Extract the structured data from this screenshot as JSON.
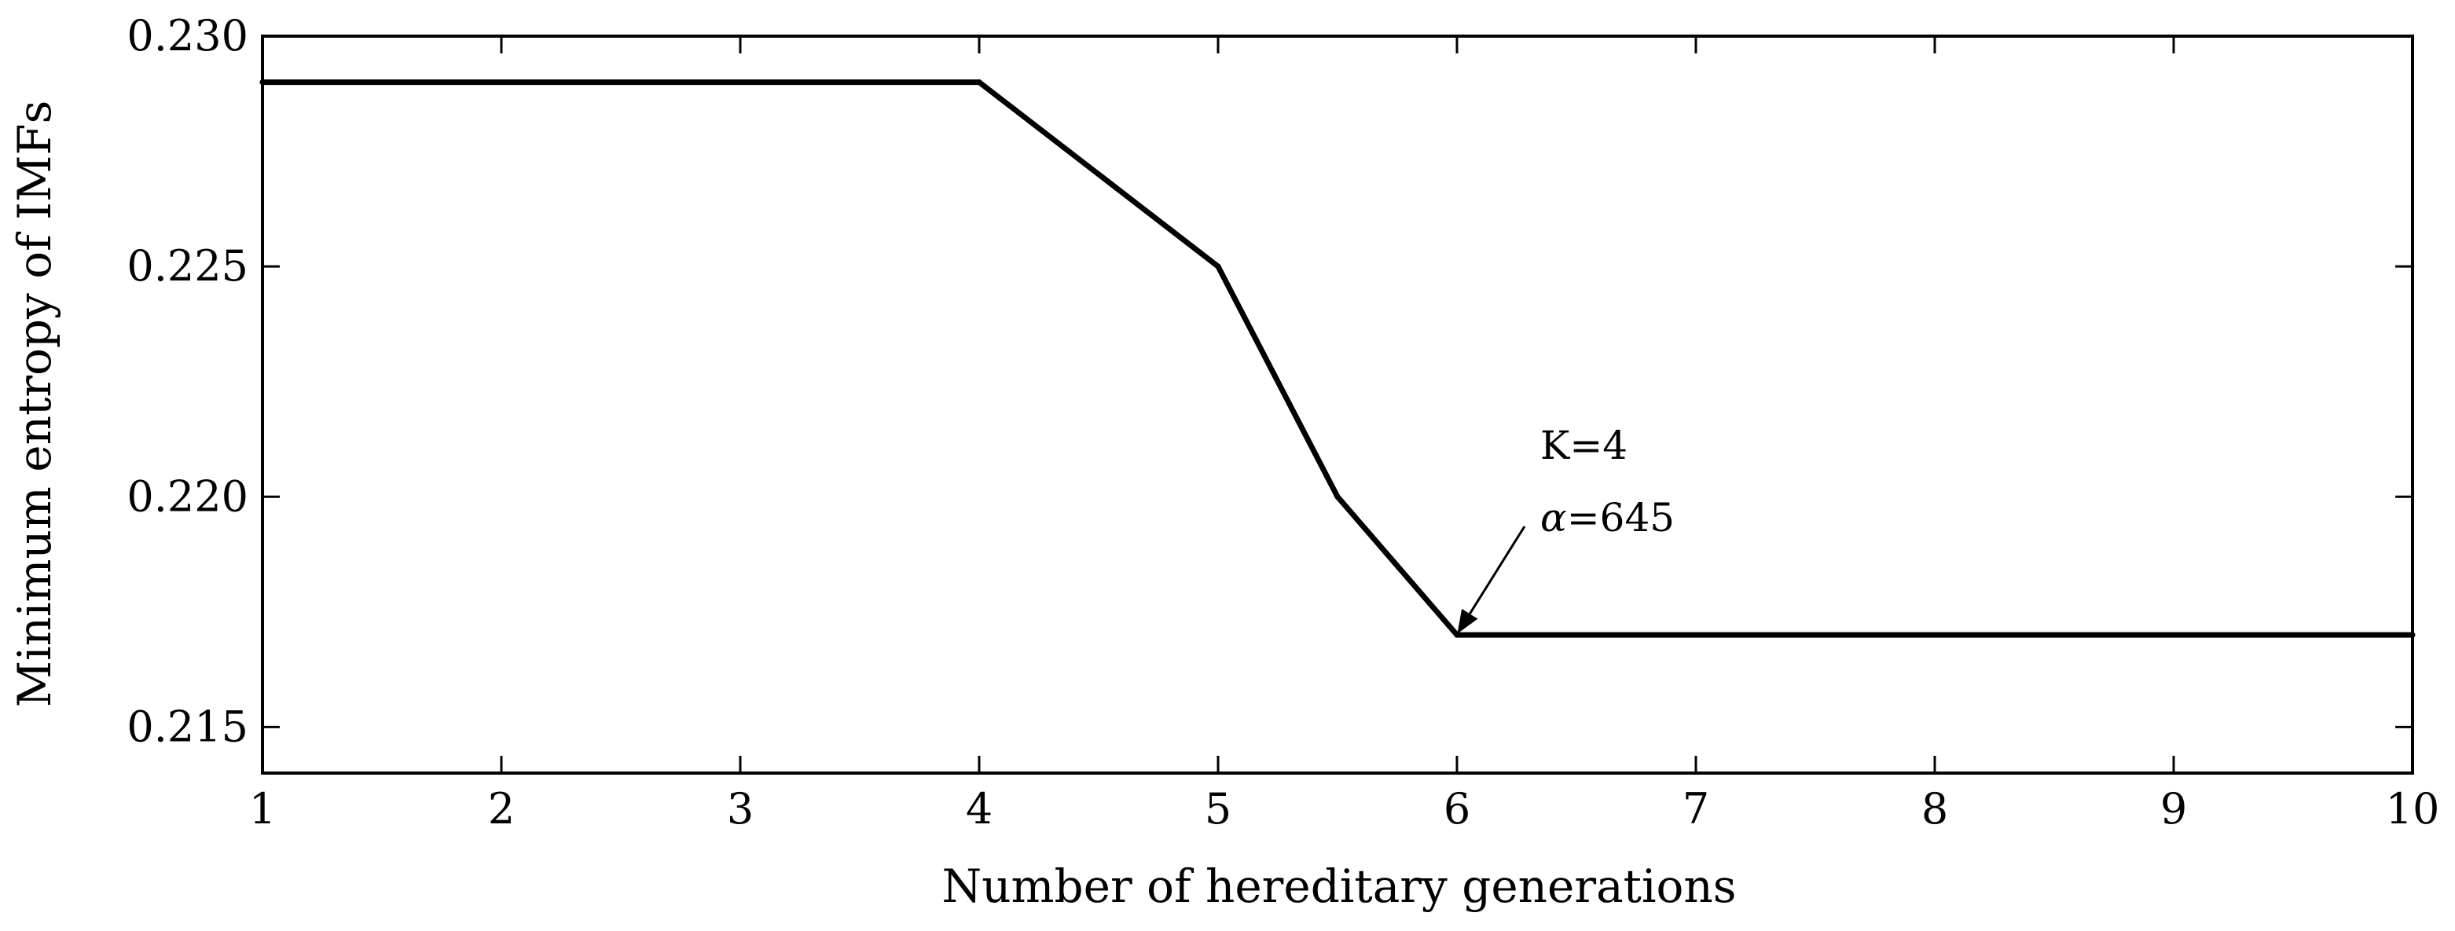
{
  "chart_data": {
    "type": "line",
    "title": "",
    "xlabel": "Number of hereditary generations",
    "ylabel": "Minimum entropy of IMFs",
    "xlim": [
      1,
      10
    ],
    "ylim": [
      0.214,
      0.23
    ],
    "x_ticks": [
      1,
      2,
      3,
      4,
      5,
      6,
      7,
      8,
      9,
      10
    ],
    "x_tick_labels": [
      "1",
      "2",
      "3",
      "4",
      "5",
      "6",
      "7",
      "8",
      "9",
      "10"
    ],
    "y_ticks": [
      0.215,
      0.22,
      0.225,
      0.23
    ],
    "y_tick_labels": [
      "0.215",
      "0.220",
      "0.225",
      "0.230"
    ],
    "grid": false,
    "legend": "none",
    "series": [
      {
        "x": [
          1,
          4,
          5,
          5.5,
          6,
          10
        ],
        "values": [
          0.229,
          0.229,
          0.225,
          0.22,
          0.217,
          0.217
        ],
        "color": "#000000"
      }
    ],
    "annotations": [
      {
        "line1": "K=4",
        "line2_symbol": "α",
        "line2_value": "=645",
        "arrow_to": {
          "x": 6,
          "y": 0.217
        }
      }
    ]
  }
}
